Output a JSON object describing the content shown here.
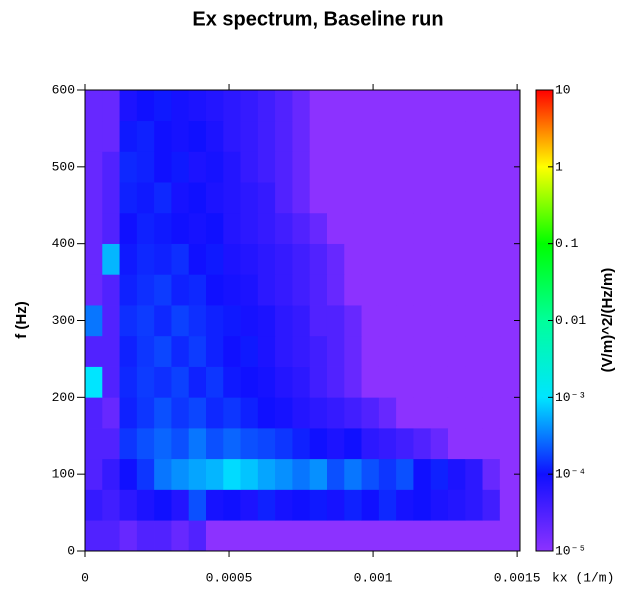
{
  "chart_data": {
    "type": "heatmap",
    "title": "Ex spectrum, Baseline run",
    "xlabel": "kx (1/m)",
    "ylabel": "f (Hz)",
    "colorbar_label": "(V/m)^2/(Hz/m)",
    "xlim": [
      0,
      0.00151
    ],
    "ylim": [
      0,
      600
    ],
    "xticks": [
      0,
      0.0005,
      0.001,
      0.0015
    ],
    "yticks": [
      0,
      100,
      200,
      300,
      400,
      500,
      600
    ],
    "zlim": [
      1e-05,
      10
    ],
    "zscale": "log",
    "zticks": [
      {
        "value": 1e-05,
        "label": "10⁻⁵"
      },
      {
        "value": 0.0001,
        "label": "10⁻⁴"
      },
      {
        "value": 0.001,
        "label": "10⁻³"
      },
      0.01,
      0.1,
      1,
      10
    ],
    "colorscale": [
      "#8c32ff",
      "#1010ff",
      "#00e5ff",
      "#00ff9a",
      "#00ff00",
      "#ffff00",
      "#ff0000"
    ],
    "xbins": [
      0,
      6e-05,
      0.00012,
      0.00018,
      0.00024,
      0.0003,
      0.00036,
      0.00042,
      0.00048,
      0.00054,
      0.0006,
      0.00066,
      0.00072,
      0.00078,
      0.00084,
      0.0009,
      0.00096,
      0.00102,
      0.00108,
      0.00114,
      0.0012,
      0.00126,
      0.00132,
      0.00138,
      0.00144,
      0.0015
    ],
    "ybins": [
      0,
      40,
      80,
      120,
      160,
      200,
      240,
      280,
      320,
      360,
      400,
      440,
      480,
      520,
      560,
      600
    ],
    "z": [
      [
        3e-05,
        3e-05,
        2e-05,
        3e-05,
        3e-05,
        2e-05,
        3e-05,
        1e-05,
        1e-05,
        1e-05,
        1e-05,
        1e-05,
        1e-05,
        1e-05,
        1e-05,
        1e-05,
        1e-05,
        1e-05,
        1e-05,
        1e-05,
        1e-05,
        1e-05,
        1e-05,
        1e-05,
        1e-05
      ],
      [
        5e-05,
        4e-05,
        6e-05,
        8e-05,
        0.0001,
        7e-05,
        0.0002,
        9e-05,
        0.0001,
        8e-05,
        0.00012,
        9e-05,
        0.0001,
        0.00011,
        9e-05,
        0.00012,
        0.0001,
        0.00013,
        9e-05,
        0.0001,
        8e-05,
        7e-05,
        6e-05,
        4e-05,
        1e-05
      ],
      [
        3e-05,
        5e-05,
        0.0001,
        0.00015,
        0.0003,
        0.0004,
        0.0005,
        0.0006,
        0.0009,
        0.0007,
        0.0005,
        0.0004,
        0.0003,
        0.0004,
        0.0002,
        0.0003,
        0.0002,
        0.00015,
        0.0002,
        0.0001,
        0.00012,
        8e-05,
        6e-05,
        2e-05,
        1e-05
      ],
      [
        3e-05,
        3e-05,
        0.00015,
        0.0002,
        0.00025,
        0.0002,
        0.0003,
        0.0002,
        0.00025,
        0.0002,
        0.00018,
        0.00015,
        0.00012,
        0.0001,
        8e-05,
        0.0001,
        6e-05,
        5e-05,
        4e-05,
        3e-05,
        2e-05,
        1e-05,
        1e-05,
        1e-05,
        1e-05
      ],
      [
        3e-05,
        2e-05,
        0.00012,
        0.00015,
        0.0002,
        0.00015,
        0.00018,
        0.00013,
        0.00015,
        0.00012,
        0.0001,
        9e-05,
        7e-05,
        6e-05,
        5e-05,
        4e-05,
        3e-05,
        2e-05,
        1e-05,
        1e-05,
        1e-05,
        1e-05,
        1e-05,
        1e-05,
        1e-05
      ],
      [
        0.001,
        3e-05,
        0.00013,
        0.00016,
        0.00014,
        0.00017,
        0.00012,
        0.00015,
        0.00011,
        0.0001,
        9e-05,
        7e-05,
        6e-05,
        4e-05,
        3e-05,
        2e-05,
        1e-05,
        1e-05,
        1e-05,
        1e-05,
        1e-05,
        1e-05,
        1e-05,
        1e-05,
        1e-05
      ],
      [
        3e-05,
        3e-05,
        0.00012,
        0.00015,
        0.00018,
        0.00013,
        0.00016,
        0.00012,
        0.0001,
        0.00011,
        8e-05,
        6e-05,
        5e-05,
        4e-05,
        3e-05,
        2e-05,
        1e-05,
        1e-05,
        1e-05,
        1e-05,
        1e-05,
        1e-05,
        1e-05,
        1e-05,
        1e-05
      ],
      [
        0.0003,
        3e-05,
        0.00014,
        0.00016,
        0.00013,
        0.00017,
        0.00014,
        0.00012,
        0.00011,
        9e-05,
        8e-05,
        6e-05,
        5e-05,
        3e-05,
        3e-05,
        2e-05,
        1e-05,
        1e-05,
        1e-05,
        1e-05,
        1e-05,
        1e-05,
        1e-05,
        1e-05,
        1e-05
      ],
      [
        2e-05,
        3e-05,
        0.00012,
        0.00014,
        0.00016,
        0.00012,
        0.00013,
        0.0001,
        9e-05,
        8e-05,
        6e-05,
        5e-05,
        4e-05,
        3e-05,
        2e-05,
        1e-05,
        1e-05,
        1e-05,
        1e-05,
        1e-05,
        1e-05,
        1e-05,
        1e-05,
        1e-05,
        1e-05
      ],
      [
        2e-05,
        0.0006,
        0.00011,
        0.00013,
        0.00012,
        0.00014,
        0.0001,
        0.00011,
        8e-05,
        7e-05,
        6e-05,
        5e-05,
        4e-05,
        3e-05,
        2e-05,
        1e-05,
        1e-05,
        1e-05,
        1e-05,
        1e-05,
        1e-05,
        1e-05,
        1e-05,
        1e-05,
        1e-05
      ],
      [
        2e-05,
        3e-05,
        0.0001,
        0.00012,
        0.00011,
        0.0001,
        9e-05,
        0.0001,
        7e-05,
        6e-05,
        5e-05,
        4e-05,
        3e-05,
        2e-05,
        1e-05,
        1e-05,
        1e-05,
        1e-05,
        1e-05,
        1e-05,
        1e-05,
        1e-05,
        1e-05,
        1e-05,
        1e-05
      ],
      [
        2e-05,
        3e-05,
        0.00012,
        0.00011,
        0.00013,
        9e-05,
        0.0001,
        8e-05,
        7e-05,
        6e-05,
        5e-05,
        3e-05,
        2e-05,
        1e-05,
        1e-05,
        1e-05,
        1e-05,
        1e-05,
        1e-05,
        1e-05,
        1e-05,
        1e-05,
        1e-05,
        1e-05,
        1e-05
      ],
      [
        2e-05,
        3e-05,
        0.00013,
        0.00012,
        0.0001,
        0.00011,
        8e-05,
        9e-05,
        7e-05,
        5e-05,
        4e-05,
        3e-05,
        2e-05,
        1e-05,
        1e-05,
        1e-05,
        1e-05,
        1e-05,
        1e-05,
        1e-05,
        1e-05,
        1e-05,
        1e-05,
        1e-05,
        1e-05
      ],
      [
        2e-05,
        2e-05,
        0.00011,
        0.00012,
        0.0001,
        9e-05,
        0.0001,
        8e-05,
        6e-05,
        5e-05,
        4e-05,
        3e-05,
        2e-05,
        1e-05,
        1e-05,
        1e-05,
        1e-05,
        1e-05,
        1e-05,
        1e-05,
        1e-05,
        1e-05,
        1e-05,
        1e-05,
        1e-05
      ],
      [
        2e-05,
        2e-05,
        8e-05,
        0.0001,
        0.00011,
        9e-05,
        8e-05,
        7e-05,
        6e-05,
        5e-05,
        4e-05,
        3e-05,
        2e-05,
        1e-05,
        1e-05,
        1e-05,
        1e-05,
        1e-05,
        1e-05,
        1e-05,
        1e-05,
        1e-05,
        1e-05,
        1e-05,
        1e-05
      ]
    ]
  }
}
